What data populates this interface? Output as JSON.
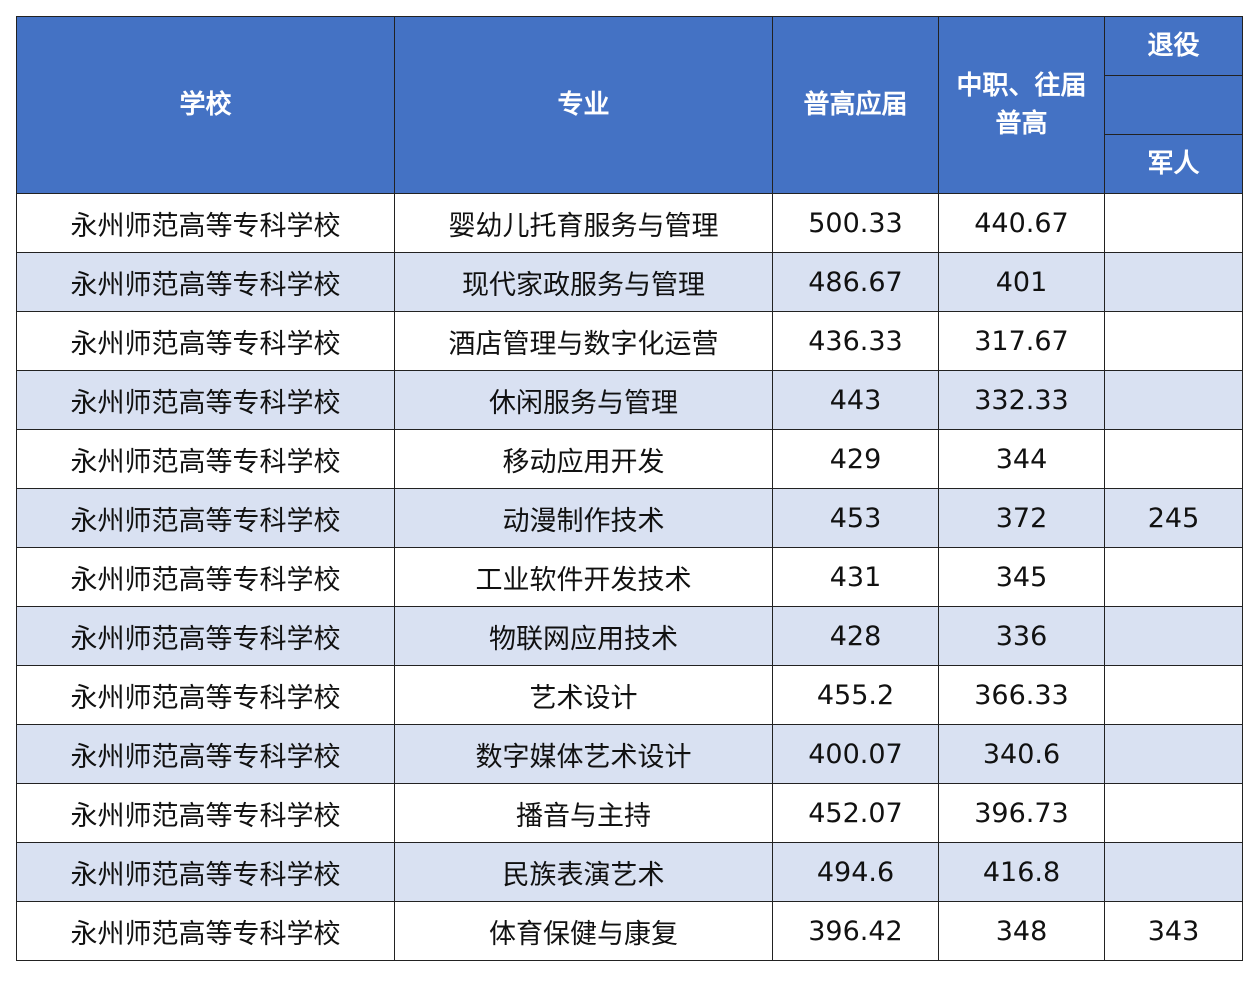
{
  "table": {
    "header": [
      "学校",
      "专业",
      "普高应届",
      "中职、往届普高",
      "退役",
      "军人"
    ],
    "rows": [
      [
        "永州师范高等专科学校",
        "婴幼儿托育服务与管理",
        500.33,
        440.67
      ],
      [
        "永州师范高等专科学校",
        "现代家政服务与管理",
        486.67,
        401
      ],
      [
        "永州师范高等专科学校",
        "酒店管理与数字化运营",
        436.33,
        317.67
      ],
      [
        "永州师范高等专科学校",
        "休闲服务与管理",
        443,
        332.33
      ],
      [
        "永州师范高等专科学校",
        "移动应用开发",
        429,
        344
      ],
      [
        "永州师范高等专科学校",
        "动漫制作技术",
        453,
        372,
        245
      ],
      [
        "永州师范高等专科学校",
        "工业软件开发技术",
        431,
        345
      ],
      [
        "永州师范高等专科学校",
        "物联网应用技术",
        428,
        336
      ],
      [
        "永州师范高等专科学校",
        "艺术设计",
        455.2,
        366.33
      ],
      [
        "永州师范高等专科学校",
        "数字媒体艺术设计",
        400.07,
        340.6
      ],
      [
        "永州师范高等专科学校",
        "播音与主持",
        452.07,
        396.73
      ],
      [
        "永州师范高等专科学校",
        "民族表演艺术",
        494.6,
        416.8
      ],
      [
        "永州师范高等专科学校",
        "体育保健与康复",
        396.42,
        348,
        343
      ]
    ]
  }
}
